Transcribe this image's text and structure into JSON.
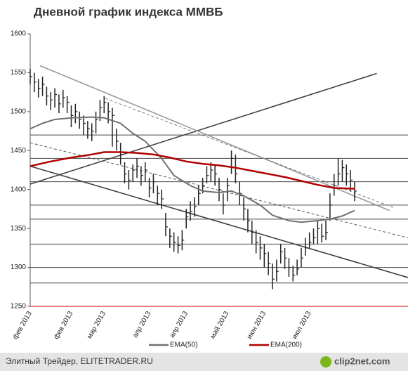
{
  "chart_data": {
    "type": "ohlc",
    "title": "Дневной график индекса ММВБ",
    "categories": [
      "фев 2013",
      null,
      null,
      null,
      null,
      null,
      null,
      null,
      null,
      null,
      "фев 2013",
      null,
      null,
      null,
      null,
      null,
      null,
      null,
      "мар 2013",
      null,
      null,
      null,
      null,
      null,
      null,
      null,
      null,
      null,
      null,
      "апр 2013",
      null,
      null,
      null,
      null,
      null,
      null,
      null,
      null,
      "апр 2013",
      null,
      null,
      null,
      null,
      null,
      null,
      null,
      null,
      null,
      "май 2013",
      null,
      null,
      null,
      null,
      null,
      null,
      null,
      null,
      "июн 2013",
      null,
      null,
      null,
      null,
      null,
      null,
      null,
      null,
      null,
      null,
      "июл 2013",
      null,
      null,
      null,
      null,
      null,
      null,
      null,
      null,
      null,
      null,
      null
    ],
    "high": [
      1555,
      1550,
      1542,
      1545,
      1532,
      1525,
      1530,
      1522,
      1528,
      1520,
      1508,
      1510,
      1500,
      1495,
      1488,
      1485,
      1500,
      1515,
      1520,
      1512,
      1505,
      1478,
      1460,
      1435,
      1425,
      1432,
      1440,
      1430,
      1435,
      1415,
      1420,
      1405,
      1400,
      1370,
      1350,
      1345,
      1340,
      1348,
      1375,
      1385,
      1390,
      1405,
      1415,
      1430,
      1435,
      1432,
      1415,
      1395,
      1415,
      1450,
      1445,
      1410,
      1390,
      1375,
      1360,
      1348,
      1340,
      1330,
      1320,
      1305,
      1310,
      1330,
      1325,
      1312,
      1302,
      1310,
      1325,
      1338,
      1345,
      1350,
      1360,
      1356,
      1360,
      1395,
      1420,
      1440,
      1438,
      1432,
      1425,
      1410
    ],
    "low": [
      1535,
      1525,
      1518,
      1520,
      1508,
      1502,
      1505,
      1498,
      1505,
      1498,
      1480,
      1485,
      1478,
      1470,
      1465,
      1462,
      1472,
      1488,
      1498,
      1485,
      1455,
      1450,
      1432,
      1408,
      1400,
      1410,
      1415,
      1405,
      1410,
      1390,
      1395,
      1380,
      1375,
      1340,
      1325,
      1320,
      1318,
      1322,
      1350,
      1360,
      1365,
      1380,
      1395,
      1408,
      1410,
      1405,
      1385,
      1368,
      1385,
      1420,
      1408,
      1380,
      1360,
      1345,
      1330,
      1318,
      1310,
      1300,
      1290,
      1272,
      1282,
      1305,
      1298,
      1288,
      1282,
      1290,
      1300,
      1315,
      1325,
      1330,
      1330,
      1332,
      1335,
      1360,
      1392,
      1405,
      1410,
      1405,
      1398,
      1385
    ],
    "close": [
      1545,
      1538,
      1530,
      1535,
      1520,
      1515,
      1522,
      1510,
      1518,
      1512,
      1495,
      1500,
      1490,
      1485,
      1478,
      1475,
      1490,
      1505,
      1512,
      1500,
      1495,
      1462,
      1445,
      1420,
      1412,
      1425,
      1430,
      1418,
      1425,
      1402,
      1410,
      1395,
      1388,
      1352,
      1340,
      1332,
      1328,
      1335,
      1365,
      1372,
      1378,
      1395,
      1405,
      1418,
      1425,
      1420,
      1400,
      1380,
      1405,
      1440,
      1420,
      1395,
      1375,
      1360,
      1345,
      1332,
      1325,
      1318,
      1305,
      1285,
      1295,
      1320,
      1312,
      1300,
      1290,
      1298,
      1312,
      1325,
      1332,
      1338,
      1350,
      1340,
      1345,
      1380,
      1405,
      1420,
      1428,
      1420,
      1412,
      1398
    ],
    "bar_color": "#222222",
    "series": [
      {
        "name": "EMA(50)",
        "color": "#707070",
        "x": [
          0,
          3,
          6,
          10,
          15,
          18,
          22,
          25,
          28,
          32,
          35,
          39,
          42,
          46,
          49,
          52,
          56,
          59,
          63,
          66,
          70,
          73,
          76,
          79
        ],
        "values": [
          1478,
          1485,
          1490,
          1492,
          1493,
          1492,
          1485,
          1472,
          1462,
          1440,
          1418,
          1405,
          1398,
          1396,
          1398,
          1392,
          1380,
          1367,
          1360,
          1358,
          1360,
          1362,
          1366,
          1373
        ]
      },
      {
        "name": "EMA(200)",
        "color": "#b00000",
        "x": [
          0,
          5,
          10,
          15,
          18,
          22,
          26,
          30,
          34,
          38,
          42,
          46,
          50,
          54,
          58,
          62,
          66,
          70,
          74,
          79
        ],
        "values": [
          1430,
          1436,
          1441,
          1445,
          1448,
          1448,
          1447,
          1445,
          1441,
          1436,
          1433,
          1431,
          1428,
          1424,
          1420,
          1416,
          1411,
          1406,
          1402,
          1401
        ]
      }
    ],
    "trend_lines": [
      {
        "x": [
          0,
          84.4
        ],
        "y": [
          1407,
          1549
        ],
        "color": "#404040",
        "dashed": false
      },
      {
        "x": [
          0,
          92
        ],
        "y": [
          1430,
          1287
        ],
        "color": "#404040",
        "dashed": false
      },
      {
        "x": [
          2.4,
          87.5
        ],
        "y": [
          1559,
          1373
        ],
        "color": "#999999",
        "dashed": false
      },
      {
        "x": [
          0,
          92
        ],
        "y": [
          1460,
          1338
        ],
        "color": "#555555",
        "dashed": true
      },
      {
        "x": [
          18.3,
          88.4
        ],
        "y": [
          1517,
          1377
        ],
        "color": "#777777",
        "dashed": true
      }
    ],
    "levels": [
      {
        "value": 1470,
        "color": "#444444"
      },
      {
        "value": 1440,
        "color": "#444444"
      },
      {
        "value": 1410,
        "color": "#444444"
      },
      {
        "value": 1380,
        "color": "#444444"
      },
      {
        "value": 1362,
        "color": "#444444"
      },
      {
        "value": 1330,
        "color": "#444444"
      },
      {
        "value": 1300,
        "color": "#444444"
      },
      {
        "value": 1280,
        "color": "#444444"
      },
      {
        "value": 1250,
        "color": "#cc0000"
      }
    ],
    "xlim": [
      0,
      92
    ],
    "ylim": [
      1250,
      1600
    ],
    "yticks": [
      1250,
      1300,
      1350,
      1400,
      1450,
      1500,
      1550,
      1600
    ]
  },
  "footer": {
    "source": "Элитный Трейдер, ELITETRADER.RU",
    "logo": "clip2net.com"
  }
}
